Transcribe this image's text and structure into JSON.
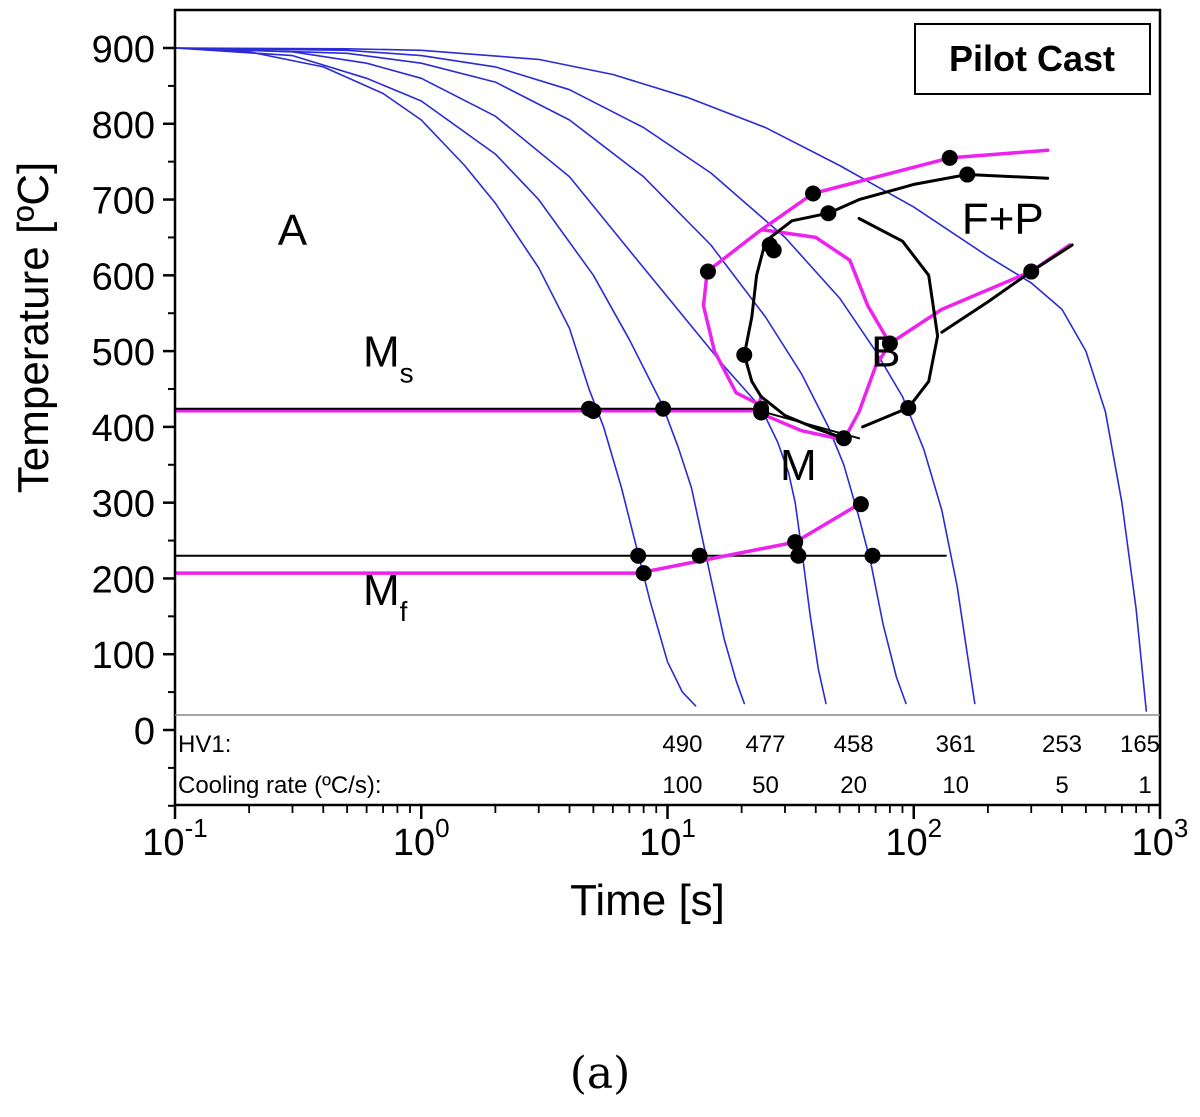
{
  "caption": "(a)",
  "chart_data": {
    "type": "line",
    "title": "Pilot Cast",
    "xlabel": "Time [s]",
    "ylabel": "Temperature [ºC]",
    "xscale": "log",
    "xlim": [
      0.1,
      1000
    ],
    "ylim": [
      0,
      900
    ],
    "xticks": [
      {
        "value": 0.1,
        "base": "10",
        "exp": "-1"
      },
      {
        "value": 1,
        "base": "10",
        "exp": "0"
      },
      {
        "value": 10,
        "base": "10",
        "exp": "1"
      },
      {
        "value": 100,
        "base": "10",
        "exp": "2"
      },
      {
        "value": 1000,
        "base": "10",
        "exp": "3"
      }
    ],
    "yticks": [
      0,
      100,
      200,
      300,
      400,
      500,
      600,
      700,
      800,
      900
    ],
    "grid": false,
    "cooling_curves": [
      {
        "rate": 100,
        "color": "#2b2bd6",
        "points": [
          [
            0.1,
            900
          ],
          [
            0.2,
            895
          ],
          [
            0.4,
            875
          ],
          [
            0.7,
            840
          ],
          [
            1.0,
            805
          ],
          [
            1.5,
            745
          ],
          [
            2.0,
            695
          ],
          [
            3.0,
            610
          ],
          [
            4.0,
            530
          ],
          [
            4.8,
            450
          ],
          [
            5.5,
            400
          ],
          [
            6.5,
            320
          ],
          [
            7.5,
            240
          ],
          [
            8.5,
            170
          ],
          [
            10.0,
            90
          ],
          [
            11.5,
            50
          ],
          [
            13.0,
            32
          ]
        ]
      },
      {
        "rate": 50,
        "color": "#2b2bd6",
        "points": [
          [
            0.1,
            900
          ],
          [
            0.3,
            890
          ],
          [
            0.6,
            860
          ],
          [
            1.0,
            830
          ],
          [
            2.0,
            760
          ],
          [
            3.0,
            700
          ],
          [
            5.0,
            600
          ],
          [
            7.0,
            515
          ],
          [
            9.5,
            430
          ],
          [
            11.0,
            375
          ],
          [
            12.5,
            320
          ],
          [
            13.5,
            270
          ],
          [
            15.0,
            200
          ],
          [
            17.0,
            120
          ],
          [
            19.0,
            65
          ],
          [
            20.5,
            35
          ]
        ]
      },
      {
        "rate": 20,
        "color": "#2b2bd6",
        "points": [
          [
            0.1,
            900
          ],
          [
            0.3,
            895
          ],
          [
            0.6,
            880
          ],
          [
            1.0,
            860
          ],
          [
            2.0,
            810
          ],
          [
            4.0,
            730
          ],
          [
            8.0,
            610
          ],
          [
            12.0,
            540
          ],
          [
            17.0,
            480
          ],
          [
            24.0,
            425
          ],
          [
            28.0,
            380
          ],
          [
            31.0,
            340
          ],
          [
            33.0,
            300
          ],
          [
            35.0,
            240
          ],
          [
            38.0,
            150
          ],
          [
            41.0,
            80
          ],
          [
            44.0,
            35
          ]
        ]
      },
      {
        "rate": 10,
        "color": "#2b2bd6",
        "points": [
          [
            0.1,
            900
          ],
          [
            0.5,
            893
          ],
          [
            1.0,
            880
          ],
          [
            2.0,
            855
          ],
          [
            4.0,
            805
          ],
          [
            8.0,
            730
          ],
          [
            15.0,
            640
          ],
          [
            25.0,
            545
          ],
          [
            35.0,
            470
          ],
          [
            45.0,
            400
          ],
          [
            52.0,
            350
          ],
          [
            60.0,
            280
          ],
          [
            67.0,
            220
          ],
          [
            75.0,
            140
          ],
          [
            85.0,
            70
          ],
          [
            93.0,
            35
          ]
        ]
      },
      {
        "rate": 5,
        "color": "#2b2bd6",
        "points": [
          [
            0.1,
            900
          ],
          [
            0.5,
            897
          ],
          [
            1.0,
            890
          ],
          [
            2.0,
            875
          ],
          [
            4.0,
            845
          ],
          [
            8.0,
            795
          ],
          [
            15.0,
            735
          ],
          [
            30.0,
            650
          ],
          [
            50.0,
            570
          ],
          [
            70.0,
            500
          ],
          [
            90.0,
            440
          ],
          [
            110.0,
            370
          ],
          [
            130.0,
            290
          ],
          [
            150.0,
            190
          ],
          [
            165.0,
            100
          ],
          [
            177.0,
            35
          ]
        ]
      },
      {
        "rate": 1,
        "color": "#2b2bd6",
        "points": [
          [
            0.1,
            900
          ],
          [
            0.5,
            899
          ],
          [
            1.0,
            897
          ],
          [
            3.0,
            885
          ],
          [
            6.0,
            865
          ],
          [
            12.0,
            835
          ],
          [
            25.0,
            795
          ],
          [
            50.0,
            745
          ],
          [
            100.0,
            690
          ],
          [
            200.0,
            625
          ],
          [
            300.0,
            590
          ],
          [
            400.0,
            555
          ],
          [
            500.0,
            500
          ],
          [
            600.0,
            420
          ],
          [
            700.0,
            300
          ],
          [
            800.0,
            160
          ],
          [
            880.0,
            25
          ]
        ]
      }
    ],
    "ms_line": {
      "color": "#000000",
      "points": [
        [
          0.1,
          424
        ],
        [
          22.0,
          424
        ],
        [
          60.0,
          385
        ]
      ]
    },
    "ms_line_magenta": {
      "color": "#ee22ee",
      "points": [
        [
          0.1,
          421
        ],
        [
          22.0,
          421
        ]
      ]
    },
    "mf_line": {
      "color": "#000000",
      "points": [
        [
          0.1,
          230
        ],
        [
          135.0,
          230
        ]
      ]
    },
    "mf_line_magenta": {
      "color": "#ee22ee",
      "points": [
        [
          0.1,
          207
        ],
        [
          7.6,
          207
        ],
        [
          33.0,
          248
        ],
        [
          60.0,
          298
        ]
      ]
    },
    "phase_boundaries": [
      {
        "name": "ferrite-start",
        "color": "#ee22ee",
        "points": [
          [
            14.5,
            605
          ],
          [
            14.0,
            560
          ],
          [
            15.5,
            500
          ],
          [
            19.0,
            445
          ],
          [
            23.5,
            430
          ],
          [
            24.0,
            440
          ]
        ]
      },
      {
        "name": "ferrite-start-upper",
        "color": "#ee22ee",
        "points": [
          [
            14.5,
            605
          ],
          [
            24.0,
            660
          ],
          [
            39.0,
            708
          ],
          [
            140.0,
            755
          ],
          [
            350.0,
            765
          ]
        ]
      },
      {
        "name": "bainite-start",
        "color": "#ee22ee",
        "points": [
          [
            24.5,
            660
          ],
          [
            40.0,
            650
          ],
          [
            55.0,
            620
          ],
          [
            65.0,
            560
          ],
          [
            80.0,
            510
          ],
          [
            130.0,
            555
          ],
          [
            300.0,
            605
          ],
          [
            430.0,
            640
          ]
        ]
      },
      {
        "name": "bainite-lower",
        "color": "#ee22ee",
        "points": [
          [
            23.0,
            420
          ],
          [
            35.0,
            395
          ],
          [
            52.0,
            383
          ],
          [
            60.0,
            420
          ],
          [
            70.0,
            480
          ],
          [
            80.0,
            510
          ]
        ]
      },
      {
        "name": "pearlite-finish",
        "color": "#000000",
        "points": [
          [
            45.0,
            682
          ],
          [
            60.0,
            700
          ],
          [
            100.0,
            720
          ],
          [
            165.0,
            733
          ],
          [
            350.0,
            728
          ]
        ]
      },
      {
        "name": "bainite-finish-loop",
        "color": "#000000",
        "points": [
          [
            60.0,
            675
          ],
          [
            90.0,
            645
          ],
          [
            115.0,
            600
          ],
          [
            125.0,
            520
          ],
          [
            115.0,
            460
          ],
          [
            95.0,
            425
          ],
          [
            62.0,
            400
          ]
        ]
      },
      {
        "name": "bainite-finish-left",
        "color": "#000000",
        "points": [
          [
            45.0,
            682
          ],
          [
            32.0,
            672
          ],
          [
            25.0,
            645
          ],
          [
            23.0,
            600
          ],
          [
            22.0,
            545
          ],
          [
            20.5,
            495
          ],
          [
            22.0,
            460
          ],
          [
            24.0,
            440
          ],
          [
            30.0,
            415
          ],
          [
            40.0,
            398
          ],
          [
            52.0,
            385
          ]
        ]
      },
      {
        "name": "pearlite-right",
        "color": "#000000",
        "points": [
          [
            130.0,
            525
          ],
          [
            200.0,
            565
          ],
          [
            300.0,
            605
          ],
          [
            440.0,
            640
          ]
        ]
      }
    ],
    "markers": [
      [
        4.8,
        424
      ],
      [
        5.0,
        421
      ],
      [
        9.6,
        424
      ],
      [
        24.0,
        424
      ],
      [
        24.0,
        419
      ],
      [
        52.0,
        385
      ],
      [
        14.6,
        605
      ],
      [
        26.0,
        640
      ],
      [
        27.0,
        633
      ],
      [
        39.0,
        708
      ],
      [
        45.0,
        682
      ],
      [
        140.0,
        755
      ],
      [
        165.0,
        733
      ],
      [
        300.0,
        605
      ],
      [
        80.0,
        510
      ],
      [
        95.0,
        425
      ],
      [
        20.5,
        495
      ],
      [
        61.0,
        298
      ],
      [
        33.0,
        248
      ],
      [
        7.6,
        230
      ],
      [
        8.0,
        207
      ],
      [
        13.5,
        230
      ],
      [
        34.0,
        230
      ],
      [
        68.0,
        230
      ]
    ],
    "region_labels": [
      {
        "text": "A",
        "x": 0.3,
        "y": 640
      },
      {
        "text": "F+P",
        "x": 230,
        "y": 655
      },
      {
        "text": "B",
        "x": 77,
        "y": 480
      },
      {
        "text": "M",
        "x": 34,
        "y": 330
      }
    ],
    "ms_label": {
      "main": "M",
      "sub": "s",
      "x": 0.58,
      "y": 480
    },
    "mf_label": {
      "main": "M",
      "sub": "f",
      "x": 0.58,
      "y": 165
    },
    "table": {
      "hv_label": "HV1:",
      "cr_label": "Cooling rate (ºC/s):",
      "hv_values": [
        {
          "text": "490",
          "x": 11.5
        },
        {
          "text": "477",
          "x": 25.0
        },
        {
          "text": "458",
          "x": 57.0
        },
        {
          "text": "361",
          "x": 148.0
        },
        {
          "text": "253",
          "x": 400.0
        },
        {
          "text": "165",
          "x": 1250.0
        }
      ],
      "cr_values": [
        {
          "text": "100",
          "x": 11.5
        },
        {
          "text": "50",
          "x": 25.0
        },
        {
          "text": "20",
          "x": 57.0
        },
        {
          "text": "10",
          "x": 148.0
        },
        {
          "text": "5",
          "x": 400.0
        },
        {
          "text": "1",
          "x": 1250.0
        }
      ]
    }
  }
}
